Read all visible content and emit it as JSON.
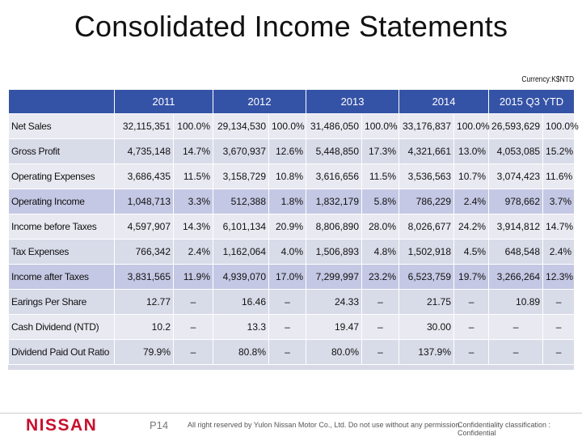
{
  "slide": {
    "title": "Consolidated Income Statements",
    "currency_note": "Currency:K$NTD"
  },
  "table": {
    "columns": [
      "2011",
      "2012",
      "2013",
      "2014",
      "2015 Q3 YTD"
    ],
    "rows": [
      {
        "label": "Net Sales",
        "cells": [
          "32,115,351",
          "100.0%",
          "29,134,530",
          "100.0%",
          "31,486,050",
          "100.0%",
          "33,176,837",
          "100.0%",
          "26,593,629",
          "100.0%"
        ],
        "highlight": false
      },
      {
        "label": "Gross Profit",
        "cells": [
          "4,735,148",
          "14.7%",
          "3,670,937",
          "12.6%",
          "5,448,850",
          "17.3%",
          "4,321,661",
          "13.0%",
          "4,053,085",
          "15.2%"
        ],
        "highlight": false
      },
      {
        "label": "Operating Expenses",
        "cells": [
          "3,686,435",
          "11.5%",
          "3,158,729",
          "10.8%",
          "3,616,656",
          "11.5%",
          "3,536,563",
          "10.7%",
          "3,074,423",
          "11.6%"
        ],
        "highlight": false
      },
      {
        "label": "Operating Income",
        "cells": [
          "1,048,713",
          "3.3%",
          "512,388",
          "1.8%",
          "1,832,179",
          "5.8%",
          "786,229",
          "2.4%",
          "978,662",
          "3.7%"
        ],
        "highlight": true
      },
      {
        "label": "Income before Taxes",
        "cells": [
          "4,597,907",
          "14.3%",
          "6,101,134",
          "20.9%",
          "8,806,890",
          "28.0%",
          "8,026,677",
          "24.2%",
          "3,914,812",
          "14.7%"
        ],
        "highlight": false
      },
      {
        "label": "Tax Expenses",
        "cells": [
          "766,342",
          "2.4%",
          "1,162,064",
          "4.0%",
          "1,506,893",
          "4.8%",
          "1,502,918",
          "4.5%",
          "648,548",
          "2.4%"
        ],
        "highlight": false
      },
      {
        "label": "Income after Taxes",
        "cells": [
          "3,831,565",
          "11.9%",
          "4,939,070",
          "17.0%",
          "7,299,997",
          "23.2%",
          "6,523,759",
          "19.7%",
          "3,266,264",
          "12.3%"
        ],
        "highlight": true
      },
      {
        "label": "Earings Per Share",
        "cells": [
          "12.77",
          "–",
          "16.46",
          "–",
          "24.33",
          "–",
          "21.75",
          "–",
          "10.89",
          "–"
        ],
        "highlight": false
      },
      {
        "label": "Cash Dividend (NTD)",
        "cells": [
          "10.2",
          "–",
          "13.3",
          "–",
          "19.47",
          "–",
          "30.00",
          "–",
          "–",
          "–"
        ],
        "highlight": false
      },
      {
        "label": "Dividend Paid Out Ratio",
        "cells": [
          "79.9%",
          "–",
          "80.8%",
          "–",
          "80.0%",
          "–",
          "137.9%",
          "–",
          "–",
          "–"
        ],
        "highlight": false
      }
    ]
  },
  "footer": {
    "logo_text": "NISSAN",
    "page": "P14",
    "rights": "All right reserved by Yulon Nissan Motor Co., Ltd. Do not use without any permission.",
    "confidentiality": "Confidentiality classification : Confidential"
  },
  "colors": {
    "header_bg": "#3553a6",
    "highlight_row": "#c5c8e4",
    "brand_red": "#c8102e"
  }
}
